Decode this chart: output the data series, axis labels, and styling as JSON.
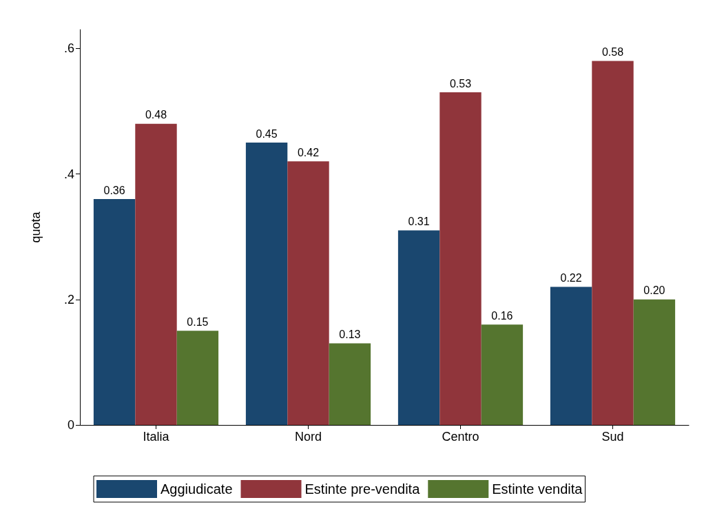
{
  "chart_data": {
    "type": "bar",
    "ylabel": "quota",
    "categories": [
      "Italia",
      "Nord",
      "Centro",
      "Sud"
    ],
    "series": [
      {
        "name": "Aggiudicate",
        "color": "#1a476f",
        "values": [
          0.36,
          0.45,
          0.31,
          0.22
        ],
        "value_labels": [
          "0.36",
          "0.45",
          "0.31",
          "0.22"
        ]
      },
      {
        "name": "Estinte pre-vendita",
        "color": "#90353b",
        "values": [
          0.48,
          0.42,
          0.53,
          0.58
        ],
        "value_labels": [
          "0.48",
          "0.42",
          "0.53",
          "0.58"
        ]
      },
      {
        "name": "Estinte vendita",
        "color": "#55752f",
        "values": [
          0.15,
          0.13,
          0.16,
          0.2
        ],
        "value_labels": [
          "0.15",
          "0.13",
          "0.16",
          "0.20"
        ]
      }
    ],
    "ylim": [
      0,
      0.63
    ],
    "yticks": [
      0,
      {
        "value": 0.2,
        "label": ".2"
      },
      {
        "value": 0.4,
        "label": ".4"
      },
      {
        "value": 0.6,
        "label": ".6"
      }
    ],
    "grid": false,
    "legend": "bottom"
  }
}
